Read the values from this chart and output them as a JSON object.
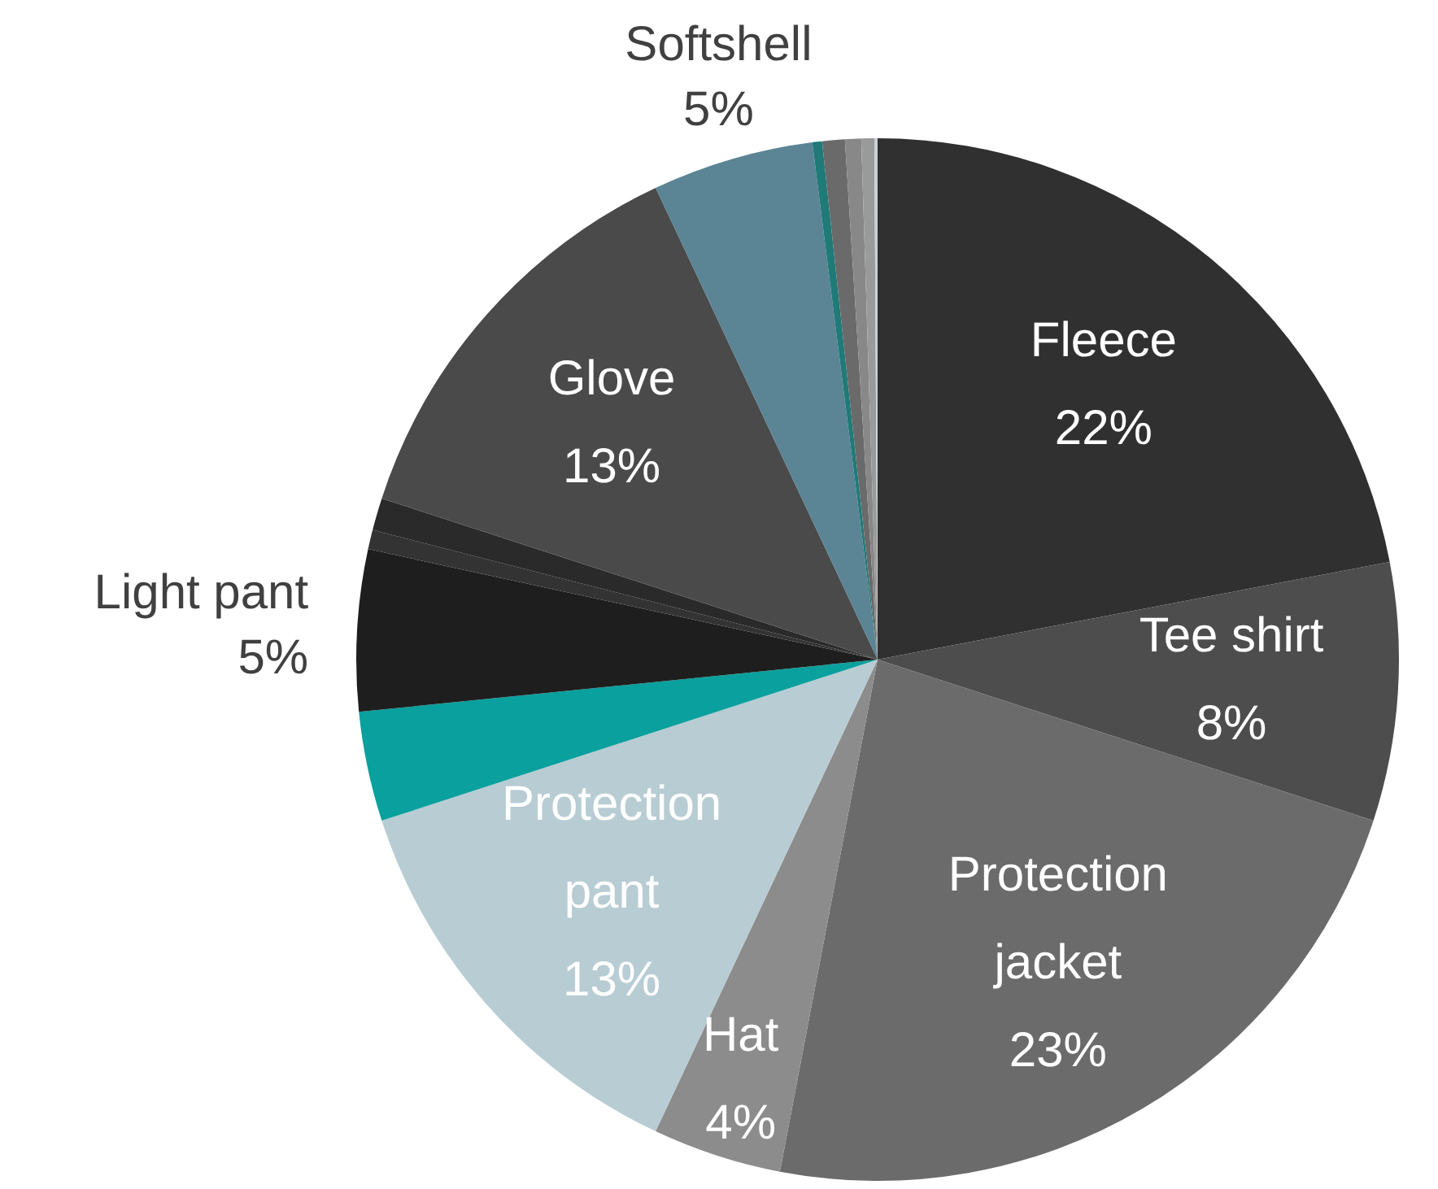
{
  "chart_data": {
    "type": "pie",
    "categories": [
      "Fleece",
      "Tee shirt",
      "Protection jacket",
      "Hat",
      "Protection pant",
      null,
      "Light pant",
      null,
      null,
      "Glove",
      "Softshell",
      null,
      null,
      null,
      null,
      null
    ],
    "values": [
      22,
      8,
      23,
      4,
      13,
      3.4,
      5,
      0.6,
      1.0,
      13,
      5,
      0.3,
      0.7,
      0.5,
      0.4,
      0.1
    ],
    "colors": [
      "#303030",
      "#4d4d4d",
      "#6b6b6b",
      "#8c8c8c",
      "#b8ccd3",
      "#09a09e",
      "#1e1e1e",
      "#333333",
      "#2a2a2a",
      "#4a4a4a",
      "#5b8494",
      "#1f7a78",
      "#6a6a6a",
      "#888888",
      "#9a9a9a",
      "#c8d0d4"
    ],
    "value_labels": [
      "22%",
      "8%",
      "23%",
      "4%",
      "13%",
      null,
      "5%",
      null,
      null,
      "13%",
      "5%",
      null,
      null,
      null,
      null,
      null
    ],
    "legend": false
  }
}
